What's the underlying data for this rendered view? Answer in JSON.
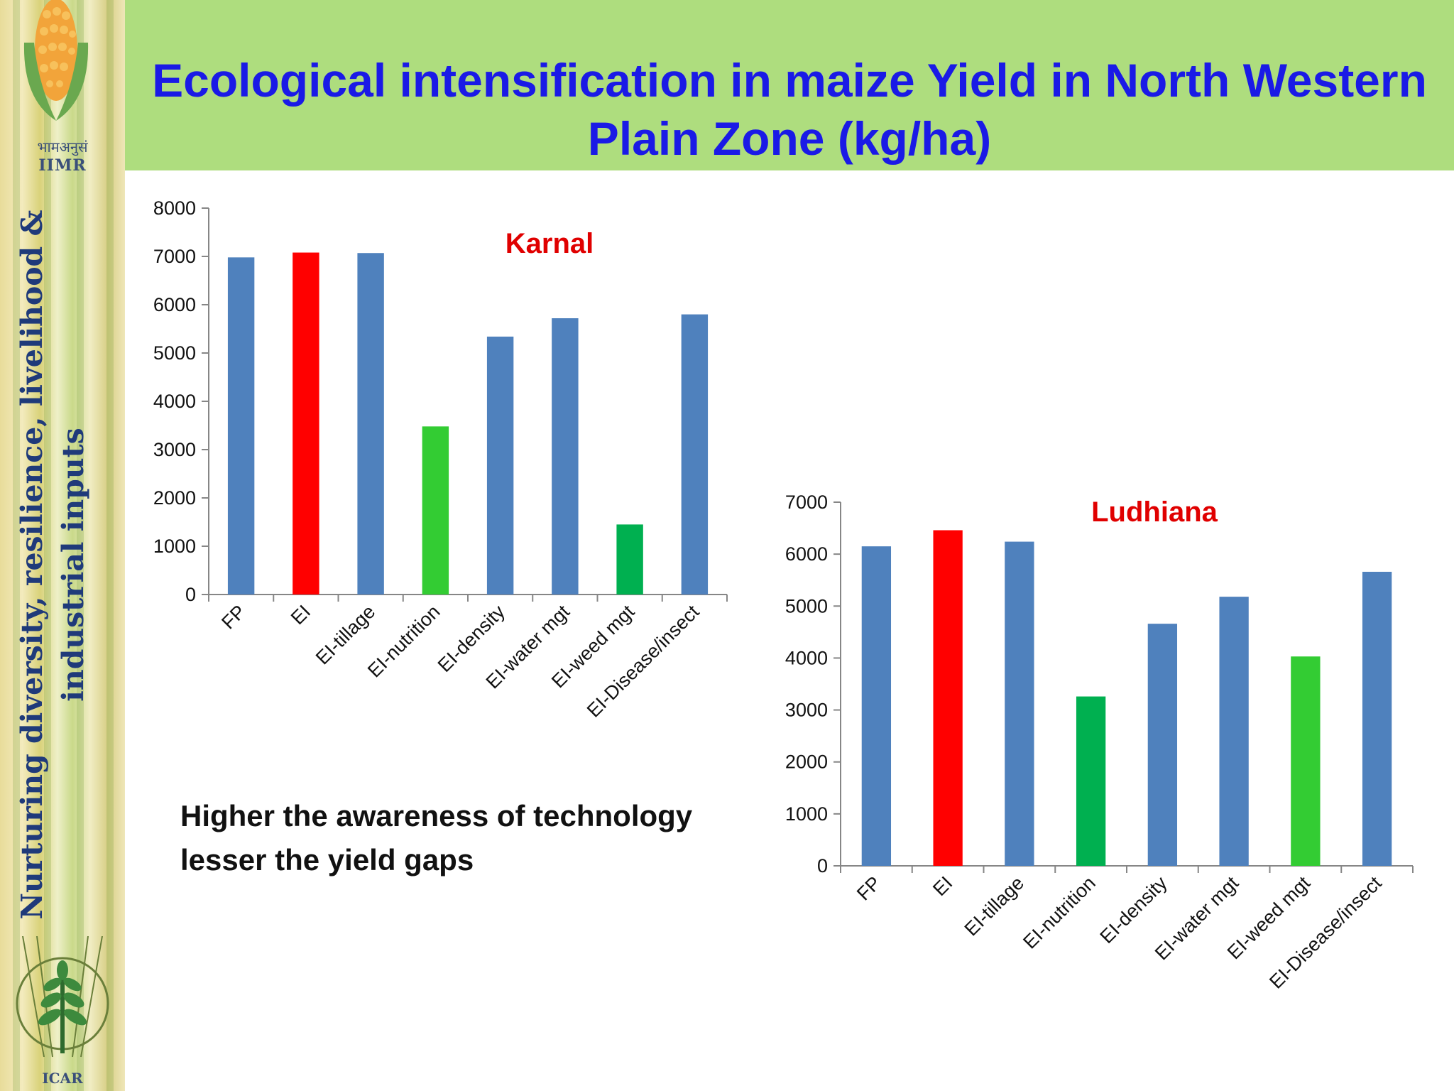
{
  "slide": {
    "title": "Ecological intensification in maize Yield in North Western Plain Zone (kg/ha)",
    "tagline": "Nurturing diversity, resilience, livelihood & industrial inputs",
    "logo_top_label": "IIMR",
    "logo_top_hindi": "भामअनुसं",
    "logo_bottom_label": "ICAR",
    "note": "Higher the awareness of technology lesser the yield gaps",
    "colors": {
      "header_bg": "#aedd7e",
      "title": "#1a1ae6",
      "chart_title": "#e00000",
      "bar_blue": "#4f81bd",
      "bar_red": "#ff0000",
      "bar_green_light": "#33cc33",
      "bar_green_dark": "#00b050"
    }
  },
  "chart_data": [
    {
      "type": "bar",
      "title": "Karnal",
      "categories": [
        "FP",
        "EI",
        "EI-tillage",
        "EI-nutrition",
        "EI-density",
        "EI-water mgt",
        "EI-weed mgt",
        "EI-Disease/insect"
      ],
      "values": [
        6980,
        7080,
        7070,
        3480,
        5340,
        5720,
        1450,
        5800
      ],
      "bar_colors": [
        "#4f81bd",
        "#ff0000",
        "#4f81bd",
        "#33cc33",
        "#4f81bd",
        "#4f81bd",
        "#00b050",
        "#4f81bd"
      ],
      "ylim": [
        0,
        8000
      ],
      "yticks": [
        0,
        1000,
        2000,
        3000,
        4000,
        5000,
        6000,
        7000,
        8000
      ],
      "xlabel": "",
      "ylabel": "",
      "grid": false
    },
    {
      "type": "bar",
      "title": "Ludhiana",
      "categories": [
        "FP",
        "EI",
        "EI-tillage",
        "EI-nutrition",
        "EI-density",
        "EI-water mgt",
        "EI-weed mgt",
        "EI-Disease/insect"
      ],
      "values": [
        6150,
        6460,
        6240,
        3260,
        4660,
        5180,
        4030,
        5660
      ],
      "bar_colors": [
        "#4f81bd",
        "#ff0000",
        "#4f81bd",
        "#00b050",
        "#4f81bd",
        "#4f81bd",
        "#33cc33",
        "#4f81bd"
      ],
      "ylim": [
        0,
        7000
      ],
      "yticks": [
        0,
        1000,
        2000,
        3000,
        4000,
        5000,
        6000,
        7000
      ],
      "xlabel": "",
      "ylabel": "",
      "grid": false
    }
  ]
}
